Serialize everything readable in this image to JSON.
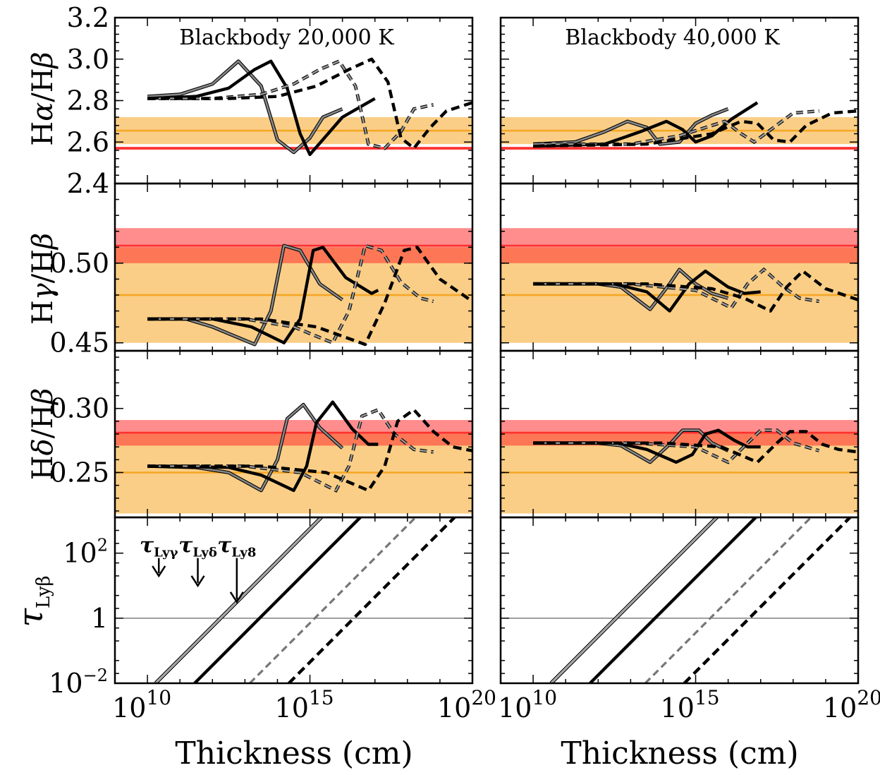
{
  "chart_data": {
    "type": "line",
    "xlabel": "Thickness (cm)",
    "xscale": "log",
    "xlim": [
      1000000000.0,
      1e+20
    ],
    "xticks": [
      "10",
      "10",
      "10"
    ],
    "xtick_exponents": [
      "10",
      "15",
      "20"
    ],
    "columns": [
      {
        "title": "Blackbody 20,000 K"
      },
      {
        "title": "Blackbody 40,000 K"
      }
    ],
    "rows": [
      {
        "key": "ha",
        "ylabel_main": "H",
        "ylabel_greek": "α",
        "ylabel_rest": "/H",
        "ylabel_greek2": "β",
        "ylim": [
          2.4,
          3.2
        ],
        "yticks": [
          "2.4",
          "2.6",
          "2.8",
          "3.0",
          "3.2"
        ],
        "ytick_values": [
          2.4,
          2.6,
          2.8,
          3.0,
          3.2
        ],
        "bands": [
          {
            "color": "#f5a623",
            "opacity": 0.55,
            "range": [
              2.59,
              2.72
            ],
            "center": 2.655
          },
          {
            "color": "#ff3030",
            "opacity": 0.8,
            "range": [
              2.563,
              2.577
            ],
            "center": 2.57
          }
        ]
      },
      {
        "key": "hg",
        "ylabel_main": "H",
        "ylabel_greek": "γ",
        "ylabel_rest": "/H",
        "ylabel_greek2": "β",
        "ylim": [
          0.445,
          0.55
        ],
        "yticks": [
          "0.45",
          "0.50"
        ],
        "ytick_values": [
          0.45,
          0.5
        ],
        "bands": [
          {
            "color": "#f5a623",
            "opacity": 0.55,
            "range": [
              0.45,
              0.51
            ],
            "center": 0.48
          },
          {
            "color": "#ff3030",
            "opacity": 0.55,
            "range": [
              0.5,
              0.522
            ],
            "center": 0.511
          }
        ]
      },
      {
        "key": "hd",
        "ylabel_main": "H",
        "ylabel_greek": "δ",
        "ylabel_rest": "/H",
        "ylabel_greek2": "β",
        "ylim": [
          0.215,
          0.345
        ],
        "yticks": [
          "0.25",
          "0.30"
        ],
        "ytick_values": [
          0.25,
          0.3
        ],
        "bands": [
          {
            "color": "#f5a623",
            "opacity": 0.55,
            "range": [
              0.218,
              0.282
            ],
            "center": 0.25
          },
          {
            "color": "#ff3030",
            "opacity": 0.55,
            "range": [
              0.271,
              0.291
            ],
            "center": 0.281
          }
        ]
      },
      {
        "key": "tau",
        "ylabel_main": "τ",
        "ylabel_sub": "Lyβ",
        "yscale": "log",
        "ylim_log10": [
          -2,
          3.1
        ],
        "yticks": [
          "10",
          "1",
          "10"
        ],
        "ytick_exponents": [
          "2",
          "",
          "−2"
        ],
        "ytick_log10": [
          2,
          0,
          -2
        ],
        "hline": 1
      }
    ],
    "series_styles": [
      {
        "name": "model A",
        "color": "#777777",
        "width": 3.2,
        "dash": "none"
      },
      {
        "name": "model B",
        "color": "#000000",
        "width": 4.4,
        "dash": "none"
      },
      {
        "name": "model C",
        "color": "#777777",
        "width": 3.2,
        "dash": "10,6"
      },
      {
        "name": "model D",
        "color": "#000000",
        "width": 4.4,
        "dash": "12,7"
      }
    ],
    "series": {
      "0_ha": [
        [
          [
            10,
            2.82
          ],
          [
            11,
            2.83
          ],
          [
            12,
            2.88
          ],
          [
            12.8,
            2.99
          ],
          [
            13.5,
            2.87
          ],
          [
            14,
            2.61
          ],
          [
            14.5,
            2.55
          ],
          [
            15,
            2.62
          ],
          [
            15.4,
            2.72
          ],
          [
            16,
            2.76
          ]
        ],
        [
          [
            10,
            2.81
          ],
          [
            11.5,
            2.82
          ],
          [
            12.5,
            2.86
          ],
          [
            13.3,
            2.95
          ],
          [
            13.8,
            2.99
          ],
          [
            14.3,
            2.86
          ],
          [
            14.7,
            2.64
          ],
          [
            15,
            2.54
          ],
          [
            15.5,
            2.63
          ],
          [
            16,
            2.72
          ],
          [
            17,
            2.81
          ]
        ],
        [
          [
            10,
            2.81
          ],
          [
            12,
            2.81
          ],
          [
            13.5,
            2.83
          ],
          [
            14.5,
            2.88
          ],
          [
            15.3,
            2.95
          ],
          [
            15.9,
            2.99
          ],
          [
            16.4,
            2.87
          ],
          [
            16.8,
            2.59
          ],
          [
            17.3,
            2.57
          ],
          [
            17.8,
            2.65
          ],
          [
            18.2,
            2.76
          ],
          [
            18.8,
            2.78
          ]
        ],
        [
          [
            10,
            2.81
          ],
          [
            12.5,
            2.81
          ],
          [
            14,
            2.82
          ],
          [
            15.2,
            2.87
          ],
          [
            16.2,
            2.95
          ],
          [
            16.9,
            3.0
          ],
          [
            17.4,
            2.89
          ],
          [
            17.8,
            2.62
          ],
          [
            18.2,
            2.57
          ],
          [
            18.7,
            2.67
          ],
          [
            19.2,
            2.75
          ],
          [
            20,
            2.79
          ]
        ]
      ],
      "1_ha": [
        [
          [
            10,
            2.59
          ],
          [
            11.3,
            2.6
          ],
          [
            12.2,
            2.65
          ],
          [
            12.9,
            2.7
          ],
          [
            13.5,
            2.67
          ],
          [
            13.9,
            2.59
          ],
          [
            14.5,
            2.6
          ],
          [
            15,
            2.69
          ],
          [
            15.5,
            2.73
          ],
          [
            16,
            2.76
          ]
        ],
        [
          [
            10,
            2.58
          ],
          [
            12.2,
            2.59
          ],
          [
            13.3,
            2.65
          ],
          [
            14.1,
            2.7
          ],
          [
            14.6,
            2.66
          ],
          [
            15,
            2.6
          ],
          [
            15.5,
            2.63
          ],
          [
            16.1,
            2.71
          ],
          [
            16.9,
            2.79
          ]
        ],
        [
          [
            10,
            2.59
          ],
          [
            13,
            2.59
          ],
          [
            14.5,
            2.63
          ],
          [
            15.3,
            2.67
          ],
          [
            15.9,
            2.7
          ],
          [
            16.4,
            2.64
          ],
          [
            16.8,
            2.6
          ],
          [
            17.4,
            2.67
          ],
          [
            18,
            2.74
          ],
          [
            18.8,
            2.75
          ]
        ],
        [
          [
            10,
            2.58
          ],
          [
            13.5,
            2.59
          ],
          [
            15.5,
            2.64
          ],
          [
            16.4,
            2.7
          ],
          [
            16.9,
            2.69
          ],
          [
            17.4,
            2.61
          ],
          [
            17.9,
            2.6
          ],
          [
            18.4,
            2.68
          ],
          [
            19.2,
            2.74
          ],
          [
            20,
            2.75
          ]
        ]
      ],
      "0_hg": [
        [
          [
            10,
            0.465
          ],
          [
            11.2,
            0.465
          ],
          [
            12,
            0.46
          ],
          [
            13.3,
            0.449
          ],
          [
            13.8,
            0.47
          ],
          [
            14.2,
            0.511
          ],
          [
            14.7,
            0.508
          ],
          [
            15.3,
            0.487
          ],
          [
            16,
            0.477
          ]
        ],
        [
          [
            10,
            0.465
          ],
          [
            12,
            0.465
          ],
          [
            13.2,
            0.46
          ],
          [
            14.2,
            0.45
          ],
          [
            14.7,
            0.465
          ],
          [
            15.1,
            0.508
          ],
          [
            15.4,
            0.51
          ],
          [
            16.1,
            0.491
          ],
          [
            16.9,
            0.481
          ],
          [
            17.1,
            0.483
          ]
        ],
        [
          [
            10,
            0.465
          ],
          [
            13,
            0.465
          ],
          [
            14.5,
            0.46
          ],
          [
            15.7,
            0.45
          ],
          [
            16.2,
            0.47
          ],
          [
            16.7,
            0.511
          ],
          [
            17.2,
            0.508
          ],
          [
            17.8,
            0.488
          ],
          [
            18.4,
            0.478
          ],
          [
            18.8,
            0.476
          ]
        ],
        [
          [
            10,
            0.465
          ],
          [
            13.5,
            0.465
          ],
          [
            15.2,
            0.46
          ],
          [
            16.7,
            0.449
          ],
          [
            17.3,
            0.475
          ],
          [
            17.9,
            0.508
          ],
          [
            18.3,
            0.51
          ],
          [
            19,
            0.49
          ],
          [
            20,
            0.476
          ]
        ]
      ],
      "1_hg": [
        [
          [
            10,
            0.487
          ],
          [
            12,
            0.487
          ],
          [
            12.7,
            0.485
          ],
          [
            13.6,
            0.471
          ],
          [
            14.2,
            0.487
          ],
          [
            14.5,
            0.496
          ],
          [
            15,
            0.487
          ],
          [
            15.5,
            0.481
          ],
          [
            16,
            0.478
          ]
        ],
        [
          [
            10,
            0.487
          ],
          [
            12.5,
            0.487
          ],
          [
            13.5,
            0.482
          ],
          [
            14.2,
            0.47
          ],
          [
            14.8,
            0.487
          ],
          [
            15.3,
            0.495
          ],
          [
            16,
            0.485
          ],
          [
            16.5,
            0.481
          ],
          [
            17,
            0.482
          ]
        ],
        [
          [
            10,
            0.487
          ],
          [
            13,
            0.487
          ],
          [
            15,
            0.483
          ],
          [
            16.1,
            0.472
          ],
          [
            16.6,
            0.487
          ],
          [
            17.1,
            0.496
          ],
          [
            17.7,
            0.485
          ],
          [
            18.2,
            0.478
          ],
          [
            18.8,
            0.476
          ]
        ],
        [
          [
            10,
            0.487
          ],
          [
            13.5,
            0.487
          ],
          [
            15.5,
            0.484
          ],
          [
            16.5,
            0.478
          ],
          [
            17.3,
            0.47
          ],
          [
            17.8,
            0.485
          ],
          [
            18.3,
            0.495
          ],
          [
            19,
            0.484
          ],
          [
            20,
            0.477
          ]
        ]
      ],
      "0_hd": [
        [
          [
            10,
            0.255
          ],
          [
            11.5,
            0.254
          ],
          [
            12.5,
            0.25
          ],
          [
            13.5,
            0.236
          ],
          [
            14,
            0.26
          ],
          [
            14.3,
            0.292
          ],
          [
            14.8,
            0.303
          ],
          [
            15.3,
            0.285
          ],
          [
            16,
            0.269
          ]
        ],
        [
          [
            10,
            0.255
          ],
          [
            12.5,
            0.254
          ],
          [
            13.5,
            0.248
          ],
          [
            14.5,
            0.236
          ],
          [
            14.9,
            0.255
          ],
          [
            15.2,
            0.289
          ],
          [
            15.7,
            0.305
          ],
          [
            16.3,
            0.284
          ],
          [
            16.8,
            0.272
          ],
          [
            17.1,
            0.272
          ]
        ],
        [
          [
            10,
            0.255
          ],
          [
            13,
            0.255
          ],
          [
            14.7,
            0.25
          ],
          [
            15.8,
            0.236
          ],
          [
            16.2,
            0.255
          ],
          [
            16.6,
            0.294
          ],
          [
            17.1,
            0.299
          ],
          [
            17.6,
            0.28
          ],
          [
            18.2,
            0.268
          ],
          [
            18.8,
            0.266
          ]
        ],
        [
          [
            10,
            0.255
          ],
          [
            13.5,
            0.255
          ],
          [
            15.5,
            0.25
          ],
          [
            16.8,
            0.236
          ],
          [
            17.3,
            0.255
          ],
          [
            17.7,
            0.29
          ],
          [
            18.2,
            0.299
          ],
          [
            18.8,
            0.282
          ],
          [
            19.4,
            0.27
          ],
          [
            20,
            0.267
          ]
        ]
      ],
      "1_hd": [
        [
          [
            10,
            0.273
          ],
          [
            12,
            0.273
          ],
          [
            12.7,
            0.271
          ],
          [
            13.6,
            0.258
          ],
          [
            14.2,
            0.272
          ],
          [
            14.6,
            0.283
          ],
          [
            15.1,
            0.283
          ],
          [
            15.5,
            0.273
          ],
          [
            16,
            0.267
          ]
        ],
        [
          [
            10,
            0.273
          ],
          [
            12.6,
            0.273
          ],
          [
            13.5,
            0.268
          ],
          [
            14.4,
            0.258
          ],
          [
            14.9,
            0.264
          ],
          [
            15.3,
            0.28
          ],
          [
            15.7,
            0.283
          ],
          [
            16.2,
            0.275
          ],
          [
            16.6,
            0.27
          ],
          [
            17,
            0.27
          ]
        ],
        [
          [
            10,
            0.273
          ],
          [
            13.2,
            0.273
          ],
          [
            15,
            0.27
          ],
          [
            16,
            0.258
          ],
          [
            16.6,
            0.273
          ],
          [
            17,
            0.283
          ],
          [
            17.5,
            0.283
          ],
          [
            18,
            0.273
          ],
          [
            18.8,
            0.267
          ]
        ],
        [
          [
            10,
            0.273
          ],
          [
            14,
            0.273
          ],
          [
            15.8,
            0.27
          ],
          [
            16.9,
            0.258
          ],
          [
            17.5,
            0.273
          ],
          [
            17.9,
            0.282
          ],
          [
            18.4,
            0.282
          ],
          [
            18.9,
            0.272
          ],
          [
            19.4,
            0.268
          ],
          [
            20,
            0.266
          ]
        ]
      ]
    },
    "tau_lines": [
      {
        "x_at_tau_1e-2": 10.25,
        "slope": 1
      },
      {
        "x_at_tau_1e-2": 11.45,
        "slope": 1
      },
      {
        "x_at_tau_1e-2": 13.15,
        "slope": 1
      },
      {
        "x_at_tau_1e-2": 14.35,
        "slope": 1
      }
    ],
    "arrows": [
      {
        "label_main": "τ",
        "label_sub": "Lyγ",
        "x_log10": 10.35,
        "top_log10": 1.85,
        "len_log10": 0.55
      },
      {
        "label_main": "τ",
        "label_sub": "Lyδ",
        "x_log10": 11.55,
        "top_log10": 1.85,
        "len_log10": 0.85
      },
      {
        "label_main": "τ",
        "label_sub": "Ly8",
        "x_log10": 12.75,
        "top_log10": 1.85,
        "len_log10": 1.35
      }
    ]
  }
}
